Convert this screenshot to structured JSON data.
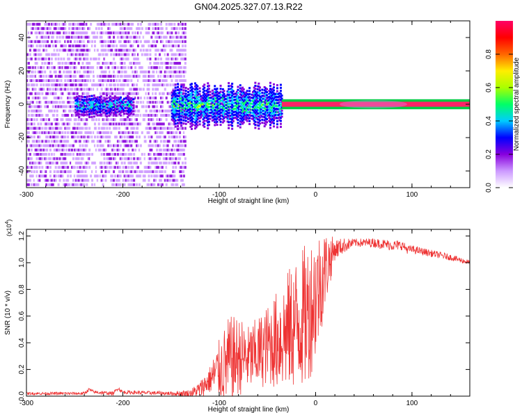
{
  "title": "GN04.2025.327.07.13.R22",
  "chart_data": [
    {
      "type": "heatmap",
      "xlabel": "Height of straight line (km)",
      "ylabel": "Frequency (Hz)",
      "xlim": [
        -300,
        160
      ],
      "ylim": [
        -50,
        50
      ],
      "xticks": [
        -300,
        -200,
        -100,
        0,
        100
      ],
      "xtick_labels": [
        "-300",
        "-200",
        "-100",
        "0",
        "100"
      ],
      "yticks": [
        -40,
        -20,
        0,
        20,
        40
      ],
      "ytick_labels": [
        "-40",
        "-20",
        "0",
        "20",
        "40"
      ],
      "colorbar": {
        "label": "Normalized spectral amplitude",
        "range": [
          0,
          1
        ],
        "ticks": [
          0.0,
          0.2,
          0.4,
          0.6,
          0.8
        ],
        "tick_labels": [
          "0.0",
          "0.2",
          "0.4",
          "0.6",
          "0.8"
        ],
        "colors": [
          "#ffffff",
          "#cc99ff",
          "#8800dd",
          "#0000ff",
          "#00ccff",
          "#00ff66",
          "#aaff00",
          "#ffee00",
          "#ff6600",
          "#ff0000",
          "#ff0066"
        ]
      },
      "regions": [
        {
          "name": "noise",
          "x": [
            -300,
            -135
          ],
          "freq_halfwidth": 50,
          "amplitude": 0.15
        },
        {
          "name": "weak-signal",
          "x": [
            -250,
            -190
          ],
          "freq_center": 0,
          "freq_halfwidth": 6,
          "amplitude": 0.35
        },
        {
          "name": "broadened-signal",
          "x": [
            -150,
            -35
          ],
          "freq_center": 0,
          "freq_halfwidth": 12,
          "amplitude": 0.4
        },
        {
          "name": "clear-carrier",
          "x": [
            -35,
            160
          ],
          "freq_center": 0,
          "freq_halfwidth": 1.5,
          "amplitude": 1.0
        }
      ]
    },
    {
      "type": "line",
      "xlabel": "Height of straight line (km)",
      "ylabel": "SNR (10 * v/v)",
      "yscale_label": "(x10",
      "yscale_exp": "4",
      "yscale_close": ")",
      "xlim": [
        -300,
        160
      ],
      "ylim": [
        0,
        1.25
      ],
      "xticks": [
        -300,
        -200,
        -100,
        0,
        100
      ],
      "xtick_labels": [
        "-300",
        "-200",
        "-100",
        "0",
        "100"
      ],
      "yticks": [
        0,
        0.2,
        0.4,
        0.6,
        0.8,
        1.0,
        1.2
      ],
      "ytick_labels": [
        "0.0",
        "0.2",
        "0.4",
        "0.6",
        "0.8",
        "1.0",
        "1.2"
      ],
      "color": "#ee3333",
      "series": [
        {
          "name": "snr-mean",
          "x": [
            -300,
            -240,
            -235,
            -230,
            -210,
            -205,
            -200,
            -150,
            -130,
            -120,
            -110,
            -100,
            -90,
            -80,
            -70,
            -60,
            -50,
            -40,
            -30,
            -20,
            -10,
            0,
            10,
            20,
            30,
            40,
            60,
            80,
            90,
            95,
            100,
            120,
            140,
            160
          ],
          "y": [
            0.02,
            0.02,
            0.05,
            0.03,
            0.02,
            0.06,
            0.03,
            0.02,
            0.02,
            0.05,
            0.12,
            0.2,
            0.25,
            0.3,
            0.28,
            0.32,
            0.38,
            0.42,
            0.48,
            0.55,
            0.6,
            0.75,
            0.95,
            1.1,
            1.13,
            1.15,
            1.15,
            1.13,
            1.13,
            1.1,
            1.1,
            1.07,
            1.04,
            1.0
          ]
        },
        {
          "name": "snr-spread",
          "x": [
            -300,
            -150,
            -130,
            -110,
            -90,
            -70,
            -50,
            -30,
            -10,
            0,
            10,
            20,
            40,
            80,
            100,
            160
          ],
          "y": [
            0.01,
            0.015,
            0.03,
            0.1,
            0.35,
            0.25,
            0.3,
            0.45,
            0.55,
            0.5,
            0.3,
            0.08,
            0.03,
            0.04,
            0.03,
            0.02
          ]
        }
      ]
    }
  ]
}
